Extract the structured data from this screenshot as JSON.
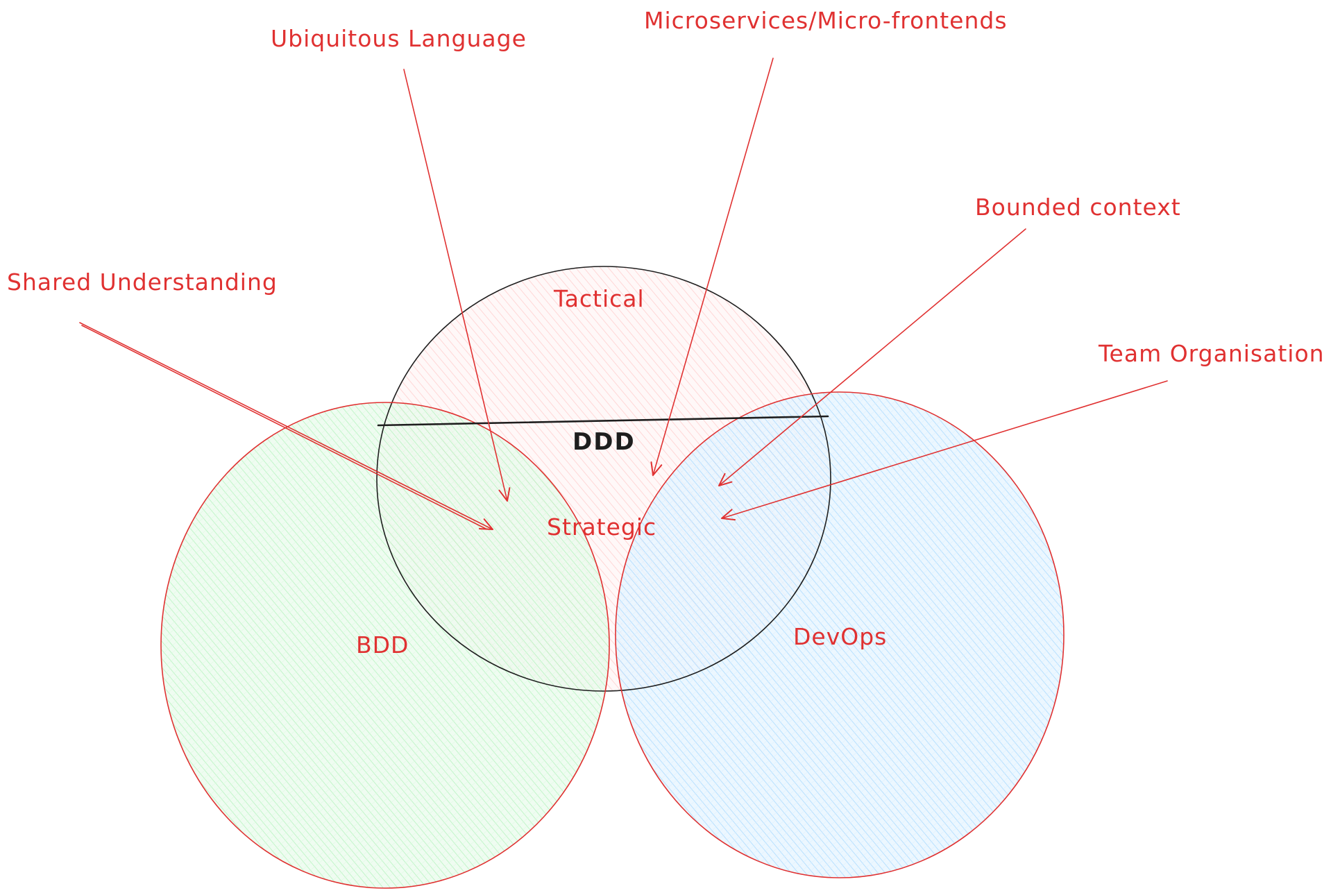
{
  "circles": {
    "ddd": {
      "label": "DDD",
      "fill": "#ffc9c9",
      "stroke": "#1e1e1e"
    },
    "bdd": {
      "label": "BDD",
      "fill": "#b2f2bb",
      "stroke": "#e03131"
    },
    "devops": {
      "label": "DevOps",
      "fill": "#a5d8ff",
      "stroke": "#e03131"
    }
  },
  "ddd_sections": {
    "tactical": "Tactical",
    "strategic": "Strategic"
  },
  "annotations": {
    "ubiquitous_language": "Ubiquitous Language",
    "microservices": "Microservices/Micro-frontends",
    "bounded_context": "Bounded context",
    "shared_understanding": "Shared Understanding",
    "team_organisation": "Team Organisation"
  },
  "colors": {
    "annotation": "#e03131",
    "divider": "#1e1e1e"
  }
}
